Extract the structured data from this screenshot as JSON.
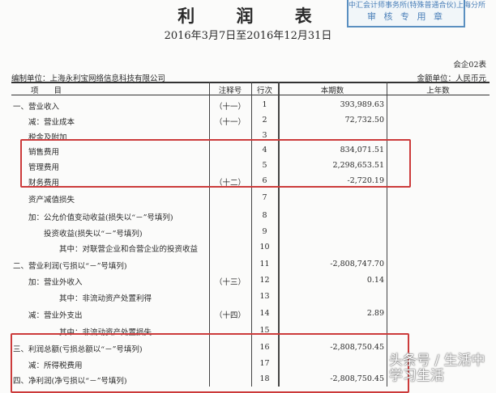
{
  "header": {
    "title": "利 润 表",
    "period": "2016年3月7日至2016年12月31日",
    "form_code": "会企02表",
    "preparer": "编制单位：上海永利宝网络信息科技有限公司",
    "currency": "金额单位：人民币元"
  },
  "stamp": {
    "line1": "中汇会计师事务所(特殊普通合伙)上海分所",
    "line2": "审 核 专 用 章",
    "color": "#4a7fb8"
  },
  "columns": {
    "item": "项　　目",
    "note": "注释号",
    "row": "行次",
    "current": "本期数",
    "prior": "上年数"
  },
  "rows": [
    {
      "item": "一、营业收入",
      "note": "（十一）",
      "row": "1",
      "current": "393,989.63"
    },
    {
      "item": "减：营业成本",
      "note": "（十一）",
      "row": "2",
      "current": "72,732.50"
    },
    {
      "item": "税金及附加",
      "note": "",
      "row": "3",
      "current": ""
    },
    {
      "item": "销售费用",
      "note": "",
      "row": "4",
      "current": "834,071.51"
    },
    {
      "item": "管理费用",
      "note": "",
      "row": "5",
      "current": "2,298,653.51"
    },
    {
      "item": "财务费用",
      "note": "（十二）",
      "row": "6",
      "current": "-2,720.19"
    },
    {
      "item": "资产减值损失",
      "note": "",
      "row": "7",
      "current": ""
    },
    {
      "item": "加：公允价值变动收益(损失以“－”号填列)",
      "note": "",
      "row": "8",
      "current": ""
    },
    {
      "item": "投资收益(损失以“－”号填列)",
      "note": "",
      "row": "9",
      "current": ""
    },
    {
      "item": "其中：对联营企业和合营企业的投资收益",
      "note": "",
      "row": "10",
      "current": ""
    },
    {
      "item": "二、营业利润(亏损以“－”号填列)",
      "note": "",
      "row": "11",
      "current": "-2,808,747.70"
    },
    {
      "item": "加：营业外收入",
      "note": "（十三）",
      "row": "12",
      "current": "0.14"
    },
    {
      "item": "其中：非流动资产处置利得",
      "note": "",
      "row": "13",
      "current": ""
    },
    {
      "item": "减：营业外支出",
      "note": "（十四）",
      "row": "14",
      "current": "2.89"
    },
    {
      "item": "其中：非流动资产处置损失",
      "note": "",
      "row": "15",
      "current": ""
    },
    {
      "item": "三、利润总额(亏损总额以“－”号填列)",
      "note": "",
      "row": "16",
      "current": "-2,808,750.45"
    },
    {
      "item": "减：所得税费用",
      "note": "",
      "row": "17",
      "current": ""
    },
    {
      "item": "四、净利润(净亏损以“－”号填列)",
      "note": "",
      "row": "18",
      "current": "-2,808,750.45"
    }
  ],
  "highlight_color": "#cc3b3b",
  "watermark": "头条号 / 生活中学习生活"
}
